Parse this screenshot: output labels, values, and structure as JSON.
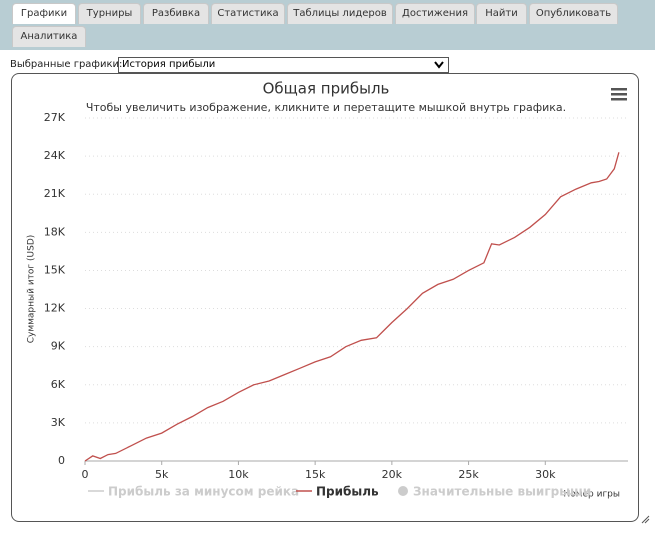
{
  "tabs": [
    "Графики",
    "Турниры",
    "Разбивка",
    "Статистика",
    "Таблицы лидеров",
    "Достижения",
    "Найти",
    "Опубликовать",
    "Аналитика"
  ],
  "active_tab": 0,
  "selector": {
    "label": "Выбранные графики:",
    "value": "История прибыли"
  },
  "chart_data": {
    "type": "line",
    "title": "Общая прибыль",
    "subtitle": "Чтобы увеличить изображение, кликните и перетащите мышкой внутрь графика.",
    "y_label": "Суммарный итог (USD)",
    "x_label": "Номер игры",
    "x": [
      0,
      500,
      1000,
      1500,
      2000,
      3000,
      4000,
      5000,
      6000,
      7000,
      8000,
      9000,
      10000,
      11000,
      12000,
      13000,
      14000,
      15000,
      16000,
      17000,
      18000,
      19000,
      20000,
      21000,
      22000,
      23000,
      24000,
      25000,
      26000,
      26500,
      27000,
      28000,
      29000,
      30000,
      31000,
      32000,
      33000,
      33500,
      34000,
      34500,
      34800
    ],
    "series": [
      {
        "name": "Прибыль за минусом рейка",
        "color": "#cccccc",
        "visible": false
      },
      {
        "name": "Прибыль",
        "color": "#c0504d",
        "visible": true,
        "values": [
          0,
          400,
          200,
          500,
          600,
          1200,
          1800,
          2200,
          2900,
          3500,
          4200,
          4700,
          5400,
          6000,
          6300,
          6800,
          7300,
          7800,
          8200,
          9000,
          9500,
          9700,
          10900,
          12000,
          13200,
          13900,
          14300,
          15000,
          15600,
          17100,
          17000,
          17600,
          18400,
          19400,
          20800,
          21400,
          21900,
          22000,
          22200,
          23000,
          24300
        ]
      },
      {
        "name": "Значительные выигрыши",
        "color": "#cccccc",
        "visible": false,
        "marker": "circle"
      }
    ],
    "xlim": [
      0,
      35000
    ],
    "xticks": [
      0,
      {
        "value": 5000,
        "label": "5k"
      },
      {
        "value": 10000,
        "label": "10k"
      },
      {
        "value": 15000,
        "label": "15k"
      },
      {
        "value": 20000,
        "label": "20k"
      },
      {
        "value": 25000,
        "label": "25k"
      },
      {
        "value": 30000,
        "label": "30k"
      }
    ],
    "ylim": [
      0,
      27000
    ],
    "yticks": [
      0,
      {
        "value": 3000,
        "label": "3K"
      },
      {
        "value": 6000,
        "label": "6K"
      },
      {
        "value": 9000,
        "label": "9K"
      },
      {
        "value": 12000,
        "label": "12K"
      },
      {
        "value": 15000,
        "label": "15K"
      },
      {
        "value": 18000,
        "label": "18K"
      },
      {
        "value": 21000,
        "label": "21K"
      },
      {
        "value": 24000,
        "label": "24K"
      },
      {
        "value": 27000,
        "label": "27K"
      }
    ],
    "grid": true
  }
}
